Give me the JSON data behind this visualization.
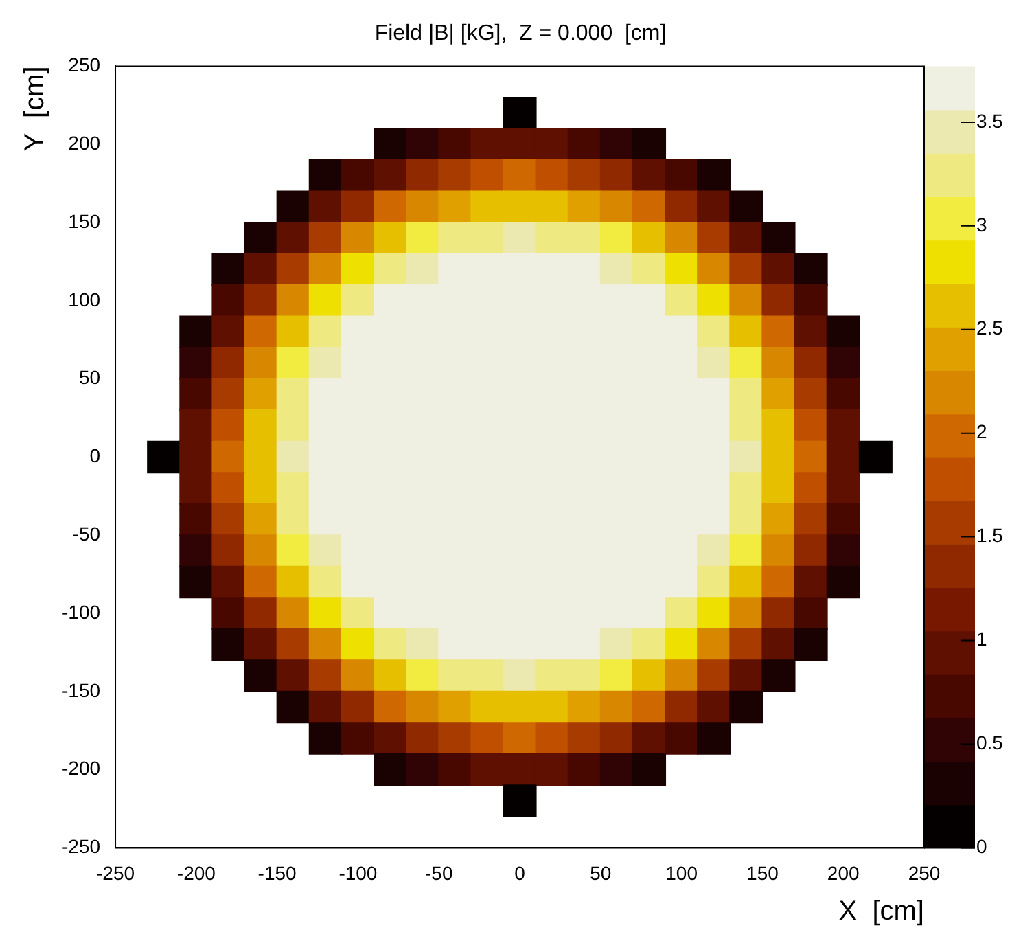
{
  "chart_data": {
    "type": "heatmap",
    "title": "Field |B| [kG],  Z = 0.000  [cm]",
    "xlabel": "X  [cm]",
    "ylabel": "Y  [cm]",
    "x": [
      -220,
      -200,
      -180,
      -160,
      -140,
      -120,
      -100,
      -80,
      -60,
      -40,
      -20,
      0,
      20,
      40,
      60,
      80,
      100,
      120,
      140,
      160,
      180,
      200,
      220
    ],
    "y": [
      220,
      200,
      180,
      160,
      140,
      120,
      100,
      80,
      60,
      40,
      20,
      0,
      -20,
      -40,
      -60,
      -80,
      -100,
      -120,
      -140,
      -160,
      -180,
      -200,
      -220
    ],
    "cells": [
      [
        null,
        null,
        null,
        null,
        null,
        null,
        null,
        null,
        null,
        null,
        null,
        0.2,
        null,
        null,
        null,
        null,
        null,
        null,
        null,
        null,
        null,
        null,
        null
      ],
      [
        null,
        null,
        null,
        null,
        null,
        null,
        null,
        0.3,
        0.5,
        0.7,
        0.9,
        0.9,
        0.9,
        0.7,
        0.5,
        0.3,
        null,
        null,
        null,
        null,
        null,
        null,
        null
      ],
      [
        null,
        null,
        null,
        null,
        null,
        0.3,
        0.7,
        1.0,
        1.4,
        1.6,
        1.8,
        1.9,
        1.8,
        1.6,
        1.4,
        1.0,
        0.7,
        0.3,
        null,
        null,
        null,
        null,
        null
      ],
      [
        null,
        null,
        null,
        null,
        0.4,
        0.9,
        1.4,
        1.9,
        2.3,
        2.5,
        2.6,
        2.7,
        2.6,
        2.5,
        2.3,
        1.9,
        1.4,
        0.9,
        0.4,
        null,
        null,
        null,
        null
      ],
      [
        null,
        null,
        null,
        0.4,
        1.0,
        1.6,
        2.2,
        2.6,
        3.0,
        3.2,
        3.3,
        3.4,
        3.3,
        3.2,
        3.0,
        2.6,
        2.2,
        1.6,
        1.0,
        0.4,
        null,
        null,
        null
      ],
      [
        null,
        null,
        0.3,
        0.9,
        1.6,
        2.3,
        2.8,
        3.2,
        3.5,
        3.7,
        3.7,
        3.7,
        3.7,
        3.7,
        3.5,
        3.2,
        2.8,
        2.3,
        1.6,
        0.9,
        0.3,
        null,
        null
      ],
      [
        null,
        null,
        0.7,
        1.4,
        2.2,
        2.8,
        3.3,
        3.6,
        3.7,
        3.7,
        3.7,
        3.7,
        3.7,
        3.7,
        3.7,
        3.6,
        3.3,
        2.8,
        2.2,
        1.4,
        0.7,
        null,
        null
      ],
      [
        null,
        0.3,
        1.0,
        1.9,
        2.6,
        3.2,
        3.6,
        3.7,
        3.7,
        3.7,
        3.7,
        3.7,
        3.7,
        3.7,
        3.7,
        3.7,
        3.6,
        3.2,
        2.6,
        1.9,
        1.0,
        0.3,
        null
      ],
      [
        null,
        0.5,
        1.4,
        2.3,
        3.0,
        3.5,
        3.7,
        3.7,
        3.7,
        3.7,
        3.7,
        3.7,
        3.7,
        3.7,
        3.7,
        3.7,
        3.7,
        3.5,
        3.0,
        2.3,
        1.4,
        0.5,
        null
      ],
      [
        null,
        0.7,
        1.6,
        2.5,
        3.2,
        3.7,
        3.7,
        3.7,
        3.7,
        3.7,
        3.7,
        3.7,
        3.7,
        3.7,
        3.7,
        3.7,
        3.7,
        3.7,
        3.2,
        2.5,
        1.6,
        0.7,
        null
      ],
      [
        null,
        0.9,
        1.8,
        2.6,
        3.3,
        3.7,
        3.7,
        3.7,
        3.7,
        3.7,
        3.7,
        3.7,
        3.7,
        3.7,
        3.7,
        3.7,
        3.7,
        3.7,
        3.3,
        2.6,
        1.8,
        0.9,
        null
      ],
      [
        0.2,
        0.9,
        1.9,
        2.7,
        3.4,
        3.7,
        3.7,
        3.7,
        3.7,
        3.7,
        3.7,
        3.7,
        3.7,
        3.7,
        3.7,
        3.7,
        3.7,
        3.7,
        3.4,
        2.7,
        1.9,
        0.9,
        0.2
      ],
      [
        null,
        0.9,
        1.8,
        2.6,
        3.3,
        3.7,
        3.7,
        3.7,
        3.7,
        3.7,
        3.7,
        3.7,
        3.7,
        3.7,
        3.7,
        3.7,
        3.7,
        3.7,
        3.3,
        2.6,
        1.8,
        0.9,
        null
      ],
      [
        null,
        0.7,
        1.6,
        2.5,
        3.2,
        3.7,
        3.7,
        3.7,
        3.7,
        3.7,
        3.7,
        3.7,
        3.7,
        3.7,
        3.7,
        3.7,
        3.7,
        3.7,
        3.2,
        2.5,
        1.6,
        0.7,
        null
      ],
      [
        null,
        0.5,
        1.4,
        2.3,
        3.0,
        3.5,
        3.7,
        3.7,
        3.7,
        3.7,
        3.7,
        3.7,
        3.7,
        3.7,
        3.7,
        3.7,
        3.7,
        3.5,
        3.0,
        2.3,
        1.4,
        0.5,
        null
      ],
      [
        null,
        0.3,
        1.0,
        1.9,
        2.6,
        3.2,
        3.6,
        3.7,
        3.7,
        3.7,
        3.7,
        3.7,
        3.7,
        3.7,
        3.7,
        3.7,
        3.6,
        3.2,
        2.6,
        1.9,
        1.0,
        0.3,
        null
      ],
      [
        null,
        null,
        0.7,
        1.4,
        2.2,
        2.8,
        3.3,
        3.6,
        3.7,
        3.7,
        3.7,
        3.7,
        3.7,
        3.7,
        3.7,
        3.6,
        3.3,
        2.8,
        2.2,
        1.4,
        0.7,
        null,
        null
      ],
      [
        null,
        null,
        0.3,
        0.9,
        1.6,
        2.3,
        2.8,
        3.2,
        3.5,
        3.7,
        3.7,
        3.7,
        3.7,
        3.7,
        3.5,
        3.2,
        2.8,
        2.3,
        1.6,
        0.9,
        0.3,
        null,
        null
      ],
      [
        null,
        null,
        null,
        0.4,
        1.0,
        1.6,
        2.2,
        2.6,
        3.0,
        3.2,
        3.3,
        3.4,
        3.3,
        3.2,
        3.0,
        2.6,
        2.2,
        1.6,
        1.0,
        0.4,
        null,
        null,
        null
      ],
      [
        null,
        null,
        null,
        null,
        0.4,
        0.9,
        1.4,
        1.9,
        2.3,
        2.5,
        2.6,
        2.7,
        2.6,
        2.5,
        2.3,
        1.9,
        1.4,
        0.9,
        0.4,
        null,
        null,
        null,
        null
      ],
      [
        null,
        null,
        null,
        null,
        null,
        0.3,
        0.7,
        1.0,
        1.4,
        1.6,
        1.8,
        1.9,
        1.8,
        1.6,
        1.4,
        1.0,
        0.7,
        0.3,
        null,
        null,
        null,
        null,
        null
      ],
      [
        null,
        null,
        null,
        null,
        null,
        null,
        null,
        0.3,
        0.5,
        0.7,
        0.9,
        0.9,
        0.9,
        0.7,
        0.5,
        0.3,
        null,
        null,
        null,
        null,
        null,
        null,
        null
      ],
      [
        null,
        null,
        null,
        null,
        null,
        null,
        null,
        null,
        null,
        null,
        null,
        0.2,
        null,
        null,
        null,
        null,
        null,
        null,
        null,
        null,
        null,
        null,
        null
      ]
    ],
    "xlim": [
      -250,
      250
    ],
    "xticks": [
      -250,
      -200,
      -150,
      -100,
      -50,
      0,
      50,
      100,
      150,
      200,
      250
    ],
    "ylim": [
      -250,
      250
    ],
    "yticks": [
      -250,
      -200,
      -150,
      -100,
      -50,
      0,
      50,
      100,
      150,
      200,
      250
    ],
    "clim": [
      0,
      3.77
    ],
    "cticks": [
      0,
      0.5,
      1,
      1.5,
      2,
      2.5,
      3,
      3.5
    ]
  }
}
